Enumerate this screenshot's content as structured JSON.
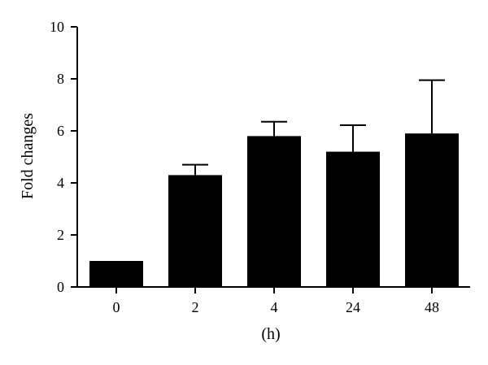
{
  "chart_data": {
    "type": "bar",
    "xlabel": "(h)",
    "ylabel": "Fold changes",
    "categories": [
      "0",
      "2",
      "4",
      "24",
      "48"
    ],
    "values": [
      1.0,
      4.3,
      5.8,
      5.2,
      5.9
    ],
    "error_upper": [
      1.0,
      4.7,
      6.35,
      6.22,
      7.95
    ],
    "ylim": [
      0,
      10
    ],
    "yticks": [
      0,
      2,
      4,
      6,
      8,
      10
    ],
    "ytick_labels": [
      "0",
      "2",
      "4",
      "6",
      "8",
      "10"
    ],
    "bar_color": "#000000",
    "grid": false,
    "legend": "none"
  }
}
